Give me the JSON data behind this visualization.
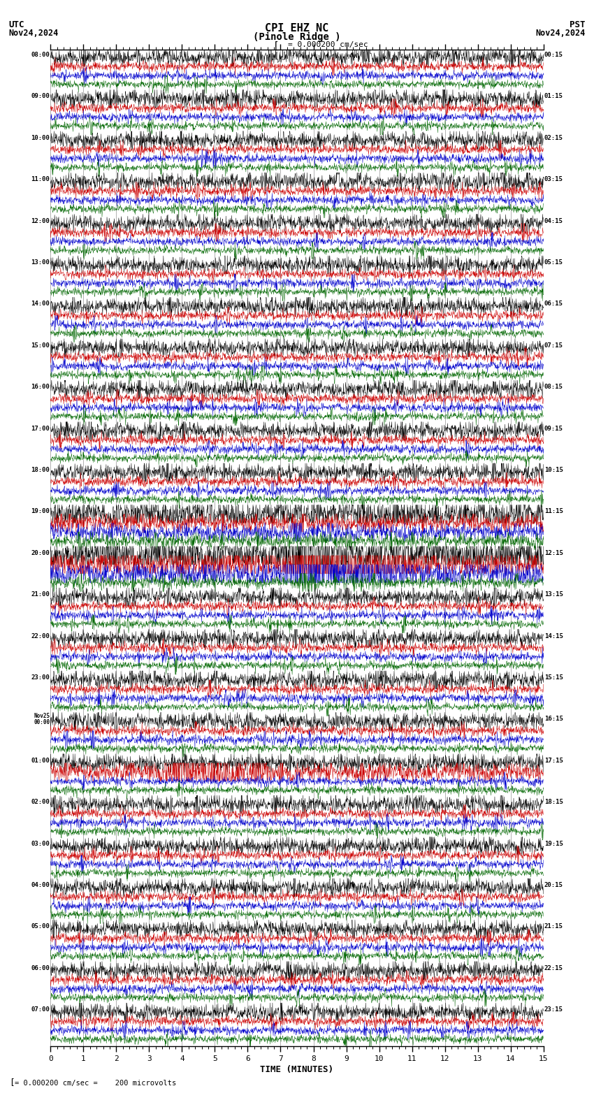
{
  "title_line1": "CPI EHZ NC",
  "title_line2": "(Pinole Ridge )",
  "scale_label": "= 0.000200 cm/sec",
  "bottom_label": "= 0.000200 cm/sec =    200 microvolts",
  "utc_label": "UTC",
  "utc_date": "Nov24,2024",
  "pst_label": "PST",
  "pst_date": "Nov24,2024",
  "xlabel": "TIME (MINUTES)",
  "bg_color": "#ffffff",
  "grid_color": "#777777",
  "trace_colors": [
    "#000000",
    "#cc0000",
    "#0000cc",
    "#006600"
  ],
  "left_times": [
    "08:00",
    "09:00",
    "10:00",
    "11:00",
    "12:00",
    "13:00",
    "14:00",
    "15:00",
    "16:00",
    "17:00",
    "18:00",
    "19:00",
    "20:00",
    "21:00",
    "22:00",
    "23:00",
    "Nov25\n00:00",
    "01:00",
    "02:00",
    "03:00",
    "04:00",
    "05:00",
    "06:00",
    "07:00"
  ],
  "right_times": [
    "00:15",
    "01:15",
    "02:15",
    "03:15",
    "04:15",
    "05:15",
    "06:15",
    "07:15",
    "08:15",
    "09:15",
    "10:15",
    "11:15",
    "12:15",
    "13:15",
    "14:15",
    "15:15",
    "16:15",
    "17:15",
    "18:15",
    "19:15",
    "20:15",
    "21:15",
    "22:15",
    "23:15"
  ],
  "num_rows": 24,
  "traces_per_row": 4,
  "figsize": [
    8.5,
    15.84
  ],
  "dpi": 100,
  "n_points": 1800,
  "x_ticks": [
    0,
    1,
    2,
    3,
    4,
    5,
    6,
    7,
    8,
    9,
    10,
    11,
    12,
    13,
    14,
    15
  ],
  "event_row_1": 11,
  "event_row_2": 12,
  "event_minute": 7.5
}
